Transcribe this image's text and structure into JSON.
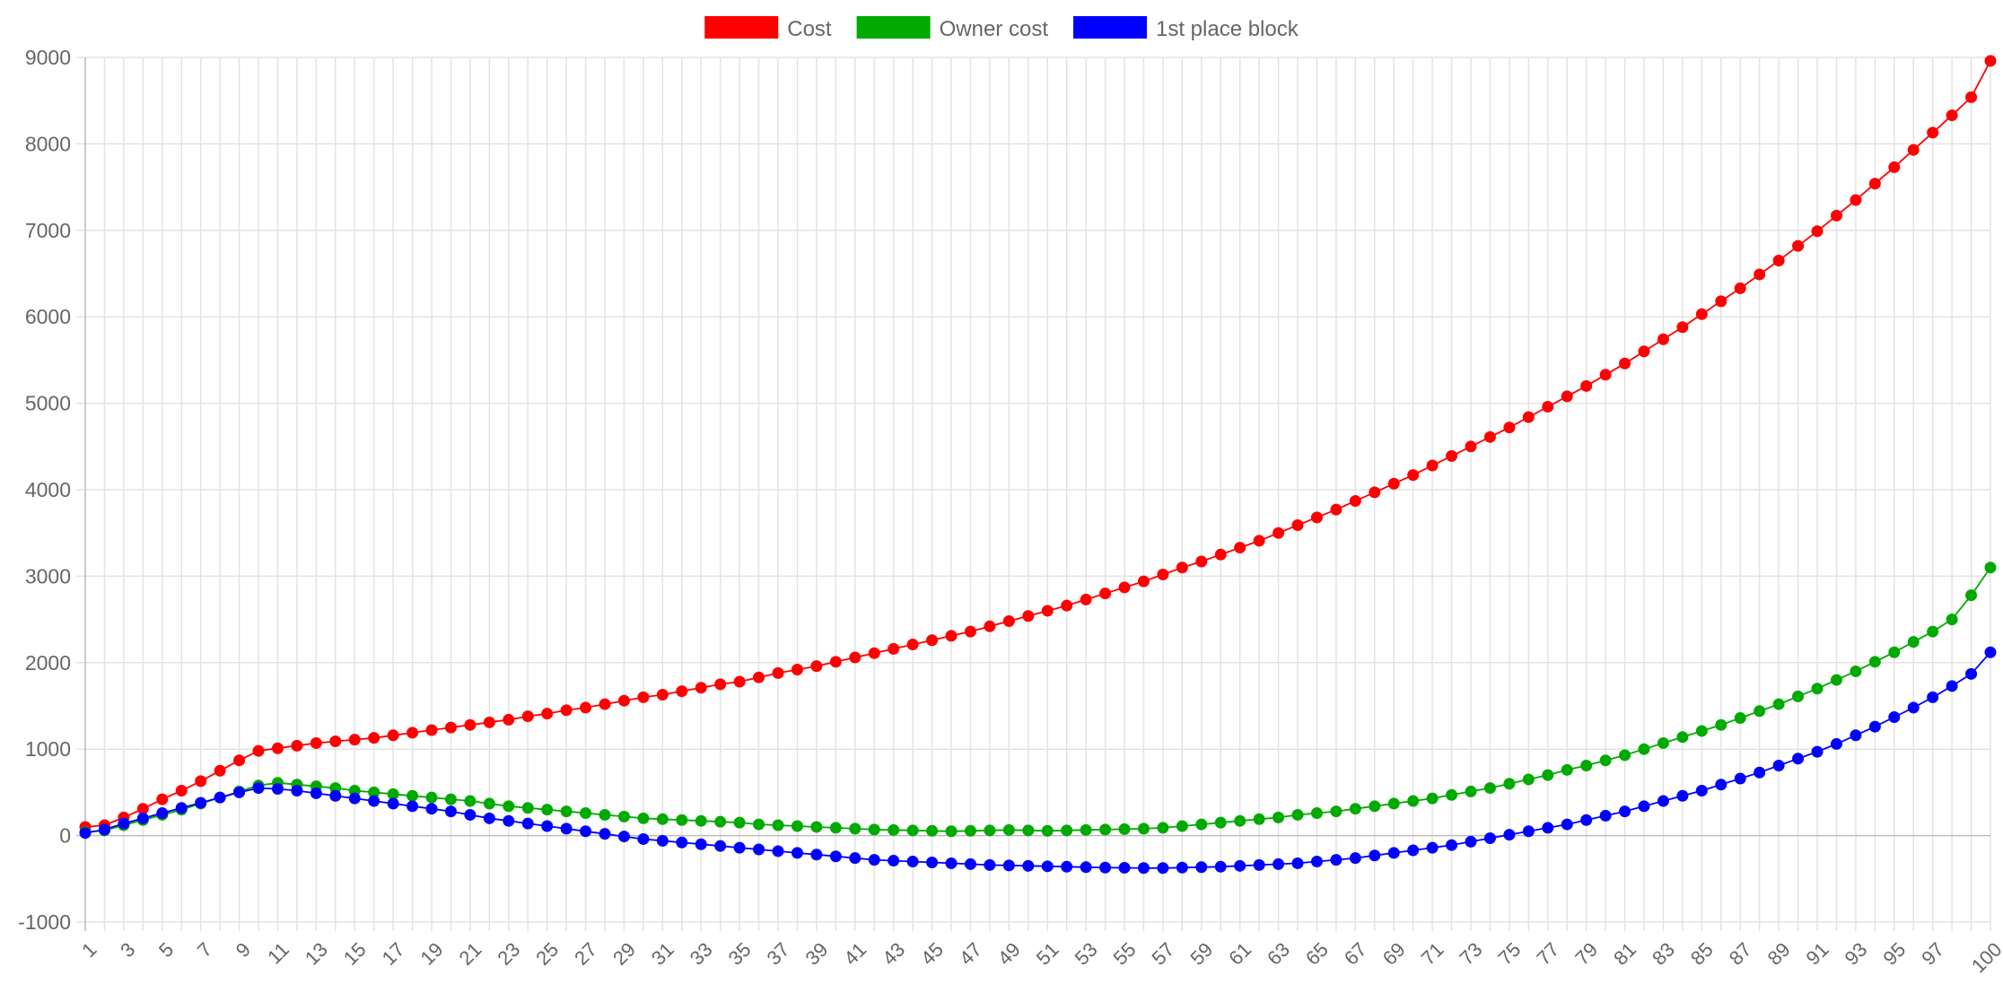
{
  "chart_data": {
    "type": "line",
    "title": "",
    "xlabel": "",
    "ylabel": "",
    "x": [
      1,
      2,
      3,
      4,
      5,
      6,
      7,
      8,
      9,
      10,
      11,
      12,
      13,
      14,
      15,
      16,
      17,
      18,
      19,
      20,
      21,
      22,
      23,
      24,
      25,
      26,
      27,
      28,
      29,
      30,
      31,
      32,
      33,
      34,
      35,
      36,
      37,
      38,
      39,
      40,
      41,
      42,
      43,
      44,
      45,
      46,
      47,
      48,
      49,
      50,
      51,
      52,
      53,
      54,
      55,
      56,
      57,
      58,
      59,
      60,
      61,
      62,
      63,
      64,
      65,
      66,
      67,
      68,
      69,
      70,
      71,
      72,
      73,
      74,
      75,
      76,
      77,
      78,
      79,
      80,
      81,
      82,
      83,
      84,
      85,
      86,
      87,
      88,
      89,
      90,
      91,
      92,
      93,
      94,
      95,
      96,
      97,
      98,
      99,
      100
    ],
    "xticks": [
      1,
      3,
      5,
      7,
      9,
      11,
      13,
      15,
      17,
      19,
      21,
      23,
      25,
      27,
      29,
      31,
      33,
      35,
      37,
      39,
      41,
      43,
      45,
      47,
      49,
      51,
      53,
      55,
      57,
      59,
      61,
      63,
      65,
      67,
      69,
      71,
      73,
      75,
      77,
      79,
      81,
      83,
      85,
      87,
      89,
      91,
      93,
      95,
      97,
      100
    ],
    "yticks": [
      -1000,
      0,
      1000,
      2000,
      3000,
      4000,
      5000,
      6000,
      7000,
      8000,
      9000
    ],
    "ylim": [
      -1000,
      9000
    ],
    "grid": true,
    "legend_position": "top-center",
    "series": [
      {
        "name": "Cost",
        "color": "#ff0000",
        "values": [
          100,
          120,
          210,
          310,
          420,
          520,
          630,
          750,
          870,
          980,
          1010,
          1040,
          1070,
          1090,
          1110,
          1130,
          1160,
          1190,
          1220,
          1250,
          1280,
          1310,
          1340,
          1380,
          1410,
          1450,
          1480,
          1520,
          1560,
          1600,
          1630,
          1670,
          1710,
          1750,
          1780,
          1830,
          1880,
          1920,
          1960,
          2010,
          2060,
          2110,
          2160,
          2210,
          2260,
          2310,
          2360,
          2420,
          2480,
          2540,
          2600,
          2660,
          2730,
          2800,
          2870,
          2940,
          3020,
          3100,
          3170,
          3250,
          3330,
          3410,
          3500,
          3590,
          3680,
          3770,
          3870,
          3970,
          4070,
          4170,
          4280,
          4390,
          4500,
          4610,
          4720,
          4840,
          4960,
          5080,
          5200,
          5330,
          5460,
          5600,
          5740,
          5880,
          6030,
          6180,
          6330,
          6490,
          6650,
          6820,
          6990,
          7170,
          7350,
          7540,
          7730,
          7930,
          8130,
          8330,
          8540,
          8960
        ]
      },
      {
        "name": "Owner cost",
        "color": "#00aa00",
        "values": [
          40,
          60,
          120,
          180,
          240,
          300,
          370,
          440,
          510,
          580,
          610,
          590,
          570,
          550,
          520,
          500,
          480,
          460,
          440,
          420,
          400,
          370,
          340,
          320,
          300,
          280,
          260,
          240,
          220,
          200,
          190,
          180,
          170,
          160,
          150,
          130,
          120,
          110,
          100,
          90,
          80,
          70,
          65,
          60,
          55,
          50,
          55,
          60,
          65,
          60,
          55,
          60,
          65,
          70,
          75,
          80,
          90,
          110,
          130,
          150,
          170,
          190,
          210,
          240,
          260,
          280,
          310,
          340,
          370,
          400,
          430,
          470,
          510,
          550,
          600,
          650,
          700,
          760,
          810,
          870,
          930,
          1000,
          1070,
          1140,
          1210,
          1280,
          1360,
          1440,
          1520,
          1610,
          1700,
          1800,
          1900,
          2010,
          2120,
          2240,
          2360,
          2500,
          2780,
          3100
        ]
      },
      {
        "name": "1st place block",
        "color": "#0000ff",
        "values": [
          30,
          70,
          140,
          200,
          260,
          320,
          380,
          440,
          500,
          550,
          540,
          520,
          490,
          460,
          430,
          400,
          370,
          340,
          310,
          280,
          240,
          200,
          170,
          140,
          110,
          80,
          50,
          20,
          -10,
          -40,
          -60,
          -80,
          -100,
          -120,
          -140,
          -160,
          -180,
          -200,
          -220,
          -240,
          -260,
          -280,
          -290,
          -300,
          -310,
          -320,
          -330,
          -340,
          -345,
          -350,
          -355,
          -360,
          -365,
          -370,
          -372,
          -375,
          -375,
          -370,
          -365,
          -360,
          -350,
          -340,
          -330,
          -320,
          -300,
          -280,
          -260,
          -230,
          -200,
          -170,
          -140,
          -110,
          -70,
          -30,
          10,
          50,
          90,
          130,
          180,
          230,
          280,
          340,
          400,
          460,
          520,
          590,
          660,
          730,
          810,
          890,
          970,
          1060,
          1160,
          1260,
          1370,
          1480,
          1600,
          1730,
          1870,
          2120
        ]
      }
    ]
  }
}
